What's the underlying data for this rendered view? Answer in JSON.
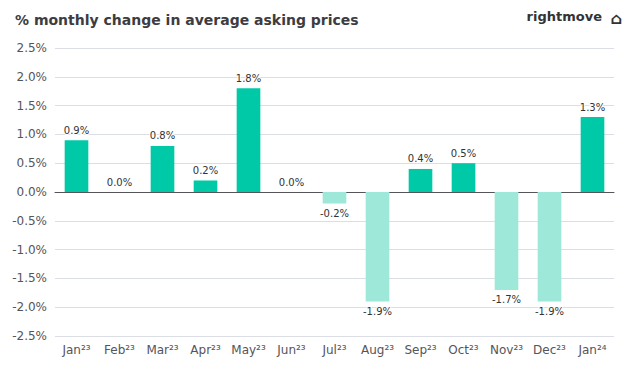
{
  "chart_data": {
    "type": "bar",
    "title": "% monthly change in average asking prices",
    "categories": [
      "Jan²³",
      "Feb²³",
      "Mar²³",
      "Apr²³",
      "May²³",
      "Jun²³",
      "Jul²³",
      "Aug²³",
      "Sep²³",
      "Oct²³",
      "Nov²³",
      "Dec²³",
      "Jan²⁴"
    ],
    "values": [
      0.9,
      0.0,
      0.8,
      0.2,
      1.8,
      0.0,
      -0.2,
      -1.9,
      0.4,
      0.5,
      -1.7,
      -1.9,
      1.3
    ],
    "value_labels": [
      "0.9%",
      "0.0%",
      "0.8%",
      "0.2%",
      "1.8%",
      "0.0%",
      "-0.2%",
      "-1.9%",
      "0.4%",
      "0.5%",
      "-1.7%",
      "-1.9%",
      "1.3%"
    ],
    "data_labels": true,
    "colors": [
      "#00c9a7",
      "#00c9a7",
      "#00c9a7",
      "#00c9a7",
      "#00c9a7",
      "#00c9a7",
      "#9de8d8",
      "#9de8d8",
      "#00c9a7",
      "#00c9a7",
      "#9de8d8",
      "#9de8d8",
      "#00c9a7"
    ],
    "ylim": [
      -2.5,
      2.5
    ],
    "yticks": [
      {
        "value": -2.5,
        "label": "-2.5%"
      },
      {
        "value": -2.0,
        "label": "-2.0%"
      },
      {
        "value": -1.5,
        "label": "-1.5%"
      },
      {
        "value": -1.0,
        "label": "-1.0%"
      },
      {
        "value": -0.5,
        "label": "-0.5%"
      },
      {
        "value": 0.0,
        "label": "0.0%"
      },
      {
        "value": 0.5,
        "label": "0.5%"
      },
      {
        "value": 1.0,
        "label": "1.0%"
      },
      {
        "value": 1.5,
        "label": "1.5%"
      },
      {
        "value": 2.0,
        "label": "2.0%"
      },
      {
        "value": 2.5,
        "label": "2.5%"
      }
    ],
    "grid": true,
    "annotations": [
      "rightmove",
      "⌂"
    ]
  }
}
